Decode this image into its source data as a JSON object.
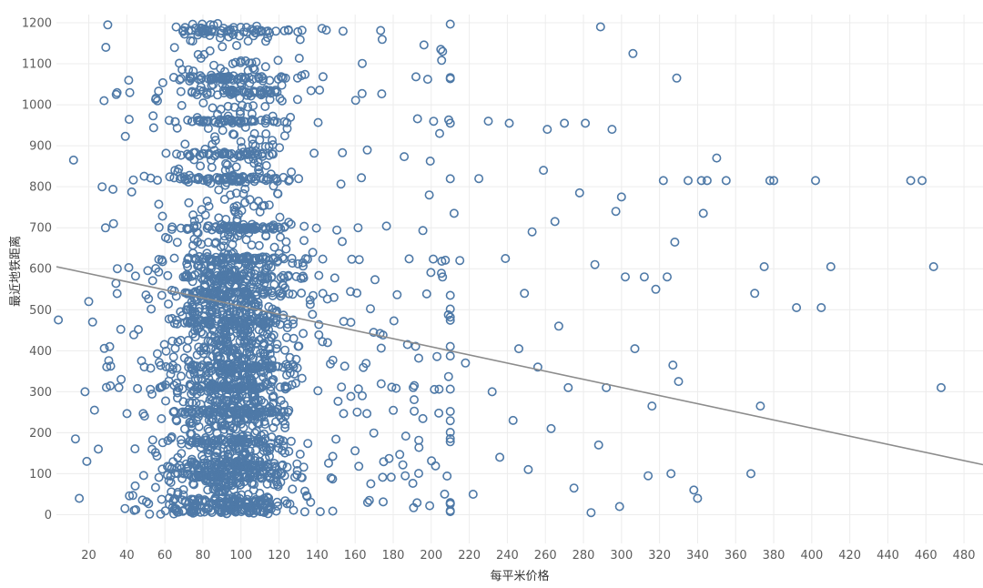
{
  "chart_data": {
    "type": "scatter",
    "title": "",
    "xlabel": "每平米价格",
    "ylabel": "最近地铁距离",
    "xlim": [
      3,
      490
    ],
    "ylim": [
      -70,
      1220
    ],
    "xticks": [
      20,
      40,
      60,
      80,
      100,
      120,
      140,
      160,
      180,
      200,
      220,
      240,
      260,
      280,
      300,
      320,
      340,
      360,
      380,
      400,
      420,
      440,
      460,
      480
    ],
    "yticks": [
      0,
      100,
      200,
      300,
      400,
      500,
      600,
      700,
      800,
      900,
      1000,
      1100,
      1200
    ],
    "grid": true,
    "marker": "circle-open",
    "colors": {
      "points": "#4e79a7",
      "trendline": "#8c8c8c"
    },
    "trendline": {
      "x": [
        3,
        490
      ],
      "y": [
        605,
        122
      ]
    },
    "series": [
      {
        "name": "sparse-points",
        "points": [
          [
            4,
            475
          ],
          [
            12,
            865
          ],
          [
            13,
            185
          ],
          [
            15,
            40
          ],
          [
            18,
            300
          ],
          [
            19,
            130
          ],
          [
            20,
            520
          ],
          [
            22,
            470
          ],
          [
            23,
            255
          ],
          [
            25,
            160
          ],
          [
            27,
            800
          ],
          [
            28,
            1010
          ],
          [
            29,
            1140
          ],
          [
            30,
            1195
          ],
          [
            31,
            410
          ],
          [
            33,
            710
          ],
          [
            35,
            600
          ],
          [
            37,
            330
          ],
          [
            39,
            15
          ],
          [
            41,
            1060
          ],
          [
            205,
            1135
          ],
          [
            206,
            1130
          ],
          [
            210,
            955
          ],
          [
            212,
            735
          ],
          [
            215,
            620
          ],
          [
            218,
            370
          ],
          [
            222,
            50
          ],
          [
            225,
            820
          ],
          [
            230,
            960
          ],
          [
            232,
            300
          ],
          [
            236,
            140
          ],
          [
            239,
            625
          ],
          [
            241,
            955
          ],
          [
            243,
            230
          ],
          [
            246,
            405
          ],
          [
            249,
            540
          ],
          [
            251,
            110
          ],
          [
            253,
            690
          ],
          [
            256,
            360
          ],
          [
            259,
            840
          ],
          [
            261,
            940
          ],
          [
            263,
            210
          ],
          [
            265,
            715
          ],
          [
            267,
            460
          ],
          [
            270,
            955
          ],
          [
            272,
            310
          ],
          [
            275,
            65
          ],
          [
            278,
            785
          ],
          [
            281,
            955
          ],
          [
            284,
            5
          ],
          [
            286,
            610
          ],
          [
            288,
            170
          ],
          [
            289,
            1190
          ],
          [
            292,
            310
          ],
          [
            295,
            940
          ],
          [
            297,
            740
          ],
          [
            299,
            20
          ],
          [
            300,
            775
          ],
          [
            302,
            580
          ],
          [
            306,
            1125
          ],
          [
            307,
            405
          ],
          [
            312,
            580
          ],
          [
            314,
            95
          ],
          [
            316,
            265
          ],
          [
            318,
            550
          ],
          [
            322,
            815
          ],
          [
            324,
            580
          ],
          [
            326,
            100
          ],
          [
            327,
            365
          ],
          [
            328,
            665
          ],
          [
            329,
            1065
          ],
          [
            330,
            325
          ],
          [
            335,
            815
          ],
          [
            338,
            60
          ],
          [
            340,
            40
          ],
          [
            342,
            815
          ],
          [
            343,
            735
          ],
          [
            345,
            815
          ],
          [
            350,
            870
          ],
          [
            355,
            815
          ],
          [
            368,
            100
          ],
          [
            370,
            540
          ],
          [
            373,
            265
          ],
          [
            375,
            605
          ],
          [
            378,
            815
          ],
          [
            380,
            815
          ],
          [
            392,
            505
          ],
          [
            402,
            815
          ],
          [
            405,
            505
          ],
          [
            410,
            605
          ],
          [
            452,
            815
          ],
          [
            458,
            815
          ],
          [
            464,
            605
          ],
          [
            468,
            310
          ]
        ]
      }
    ],
    "dense_cluster": {
      "x_range": [
        28,
        180
      ],
      "x_peak": 95,
      "y_range": [
        0,
        1200
      ],
      "approx_count": 2600,
      "band_levels": [
        10,
        30,
        95,
        120,
        180,
        250,
        310,
        360,
        470,
        540,
        580,
        625,
        700,
        820,
        880,
        960,
        1030,
        1065,
        1180
      ]
    }
  }
}
